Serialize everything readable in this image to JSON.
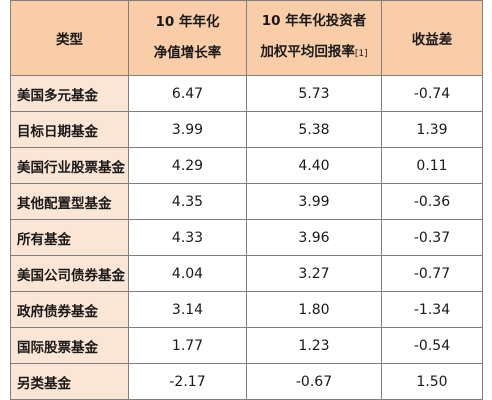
{
  "table": {
    "headers": {
      "type": "类型",
      "nav_line1": "10 年年化",
      "nav_line2": "净值增长率",
      "inv_line1": "10 年年化投资者",
      "inv_line2": "加权平均回报率",
      "inv_note": "[1]",
      "gap": "收益差"
    },
    "rows": [
      {
        "type": "美国多元基金",
        "nav": "6.47",
        "inv": "5.73",
        "gap": "-0.74"
      },
      {
        "type": "目标日期基金",
        "nav": "3.99",
        "inv": "5.38",
        "gap": "1.39"
      },
      {
        "type": "美国行业股票基金",
        "nav": "4.29",
        "inv": "4.40",
        "gap": "0.11"
      },
      {
        "type": "其他配置型基金",
        "nav": "4.35",
        "inv": "3.99",
        "gap": "-0.36"
      },
      {
        "type": "所有基金",
        "nav": "4.33",
        "inv": "3.96",
        "gap": "-0.37"
      },
      {
        "type": "美国公司债券基金",
        "nav": "4.04",
        "inv": "3.27",
        "gap": "-0.77"
      },
      {
        "type": "政府债券基金",
        "nav": "3.14",
        "inv": "1.80",
        "gap": "-1.34"
      },
      {
        "type": "国际股票基金",
        "nav": "1.77",
        "inv": "1.23",
        "gap": "-0.54"
      },
      {
        "type": "另类基金",
        "nav": "-2.17",
        "inv": "-0.67",
        "gap": "1.50"
      }
    ]
  },
  "colors": {
    "header_bg": "#f8cda8",
    "type_col_bg": "#fbe5d4",
    "border": "#7f7f7f"
  }
}
